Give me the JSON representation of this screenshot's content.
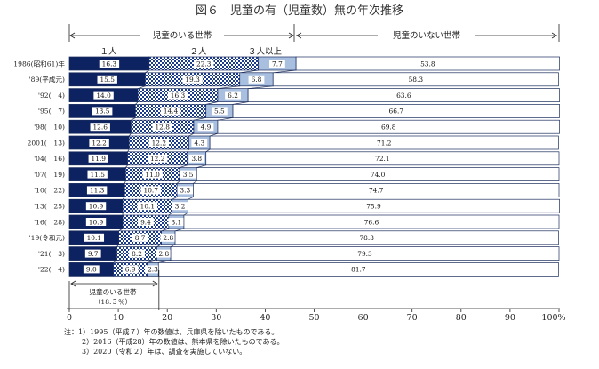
{
  "title": "図６　児童の有（児童数）無の年次推移",
  "headers": {
    "with_children": "児童のいる世帯",
    "without_children": "児童のいない世帯",
    "one": "１人",
    "two": "２人",
    "three_plus": "３人以上"
  },
  "annotation": {
    "line1": "児童のいる世帯",
    "line2": "（18.３％）"
  },
  "notes": [
    "注：1）1995（平成７）年の数値は、兵庫県を除いたものである。",
    "2）2016（平成28）年の数値は、熊本県を除いたものである。",
    "3）2020（令和２）年は、調査を実施していない。"
  ],
  "colors": {
    "one": "#0d2260",
    "two": "checker-blue-white",
    "three_plus": "#a9bfe0",
    "none": "#ffffff"
  },
  "chart_data": {
    "type": "bar",
    "orientation": "horizontal",
    "stacked": true,
    "xlim": [
      0,
      100
    ],
    "x_ticks": [
      "0",
      "10",
      "20",
      "30",
      "40",
      "50",
      "60",
      "70",
      "80",
      "90",
      "100%"
    ],
    "categories": [
      "1986(昭和61)年",
      "'89(平成元)",
      "'92(　4)",
      "'95(　7)",
      "'98(　10)",
      "2001(　13)",
      "'04(　16)",
      "'07(　19)",
      "'10(　22)",
      "'13(　25)",
      "'16(　28)",
      "'19(令和元)",
      "'21(　3)",
      "'22(　4)"
    ],
    "series": [
      {
        "name": "１人",
        "values": [
          16.3,
          15.5,
          14.0,
          13.5,
          12.6,
          12.2,
          11.9,
          11.5,
          11.3,
          10.9,
          10.9,
          10.1,
          9.7,
          9.0
        ]
      },
      {
        "name": "２人",
        "values": [
          22.3,
          19.3,
          16.3,
          14.4,
          12.8,
          12.2,
          12.2,
          11.0,
          10.7,
          10.1,
          9.4,
          8.7,
          8.2,
          6.9
        ]
      },
      {
        "name": "３人以上",
        "values": [
          7.7,
          6.8,
          6.2,
          5.5,
          4.9,
          4.3,
          3.8,
          3.5,
          3.3,
          3.2,
          3.1,
          2.8,
          2.8,
          2.3
        ]
      },
      {
        "name": "児童のいない世帯",
        "values": [
          53.8,
          58.3,
          63.6,
          66.7,
          69.8,
          71.2,
          72.1,
          74.0,
          74.7,
          75.9,
          76.6,
          78.3,
          79.3,
          81.7
        ]
      }
    ],
    "values_display": [
      [
        "16.3",
        "22.3",
        "7.7",
        "53.8"
      ],
      [
        "15.5",
        "19.3",
        "6.8",
        "58.3"
      ],
      [
        "14.0",
        "16.3",
        "6.2",
        "63.6"
      ],
      [
        "13.5",
        "14.4",
        "5.5",
        "66.7"
      ],
      [
        "12.6",
        "12.8",
        "4.9",
        "69.8"
      ],
      [
        "12.2",
        "12.2",
        "4.3",
        "71.2"
      ],
      [
        "11.9",
        "12.2",
        "3.8",
        "72.1"
      ],
      [
        "11.5",
        "11.0",
        "3.5",
        "74.0"
      ],
      [
        "11.3",
        "10.7",
        "3.3",
        "74.7"
      ],
      [
        "10.9",
        "10.1",
        "3.2",
        "75.9"
      ],
      [
        "10.9",
        "9.4",
        "3.1",
        "76.6"
      ],
      [
        "10.1",
        "8.7",
        "2.8",
        "78.3"
      ],
      [
        "9.7",
        "8.2",
        "2.8",
        "79.3"
      ],
      [
        "9.0",
        "6.9",
        "2.3",
        "81.7"
      ]
    ],
    "reference_line": 18.3
  }
}
